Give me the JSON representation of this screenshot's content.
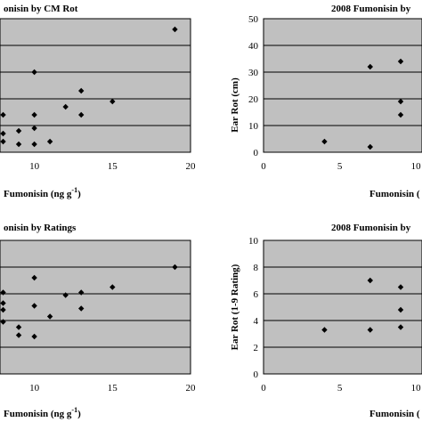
{
  "chart_data": [
    {
      "id": "tl",
      "type": "scatter",
      "title": "onisin by CM Rot",
      "xlabel": "Fumonisin (ng g",
      "xlabel_sup": "-1",
      "xlabel_tail": ")",
      "ylabel": "",
      "xlim": [
        7.8,
        20
      ],
      "ylim": [
        0,
        50
      ],
      "xticks": [
        "10",
        "15",
        "20"
      ],
      "yticks": [],
      "grid": true,
      "x": [
        8,
        8,
        8,
        9,
        9,
        10,
        10,
        10,
        10,
        11,
        12,
        13,
        13,
        15,
        19
      ],
      "y": [
        7,
        4,
        14,
        3,
        8,
        3,
        9,
        14,
        30,
        4,
        17,
        14,
        23,
        19,
        46
      ]
    },
    {
      "id": "tr",
      "type": "scatter",
      "title": "2008 Fumonisin by",
      "xlabel": "Fumonisin (",
      "ylabel": "Ear Rot (cm)",
      "xlim": [
        0,
        10.4
      ],
      "ylim": [
        0,
        50
      ],
      "xticks": [
        "0",
        "5",
        "10"
      ],
      "yticks": [
        "0",
        "10",
        "20",
        "30",
        "40",
        "50"
      ],
      "grid": true,
      "x": [
        4,
        7,
        7,
        9,
        9,
        9
      ],
      "y": [
        4,
        2,
        32,
        14,
        19,
        34
      ]
    },
    {
      "id": "bl",
      "type": "scatter",
      "title": "onisin by Ratings",
      "xlabel": "Fumonisin (ng g",
      "xlabel_sup": "-1",
      "xlabel_tail": ")",
      "ylabel": "",
      "xlim": [
        7.8,
        20
      ],
      "ylim": [
        0,
        10
      ],
      "xticks": [
        "10",
        "15",
        "20"
      ],
      "yticks": [],
      "grid": true,
      "x": [
        8,
        8,
        8,
        8,
        9,
        9,
        10,
        10,
        10,
        11,
        12,
        13,
        13,
        15,
        19
      ],
      "y": [
        6.1,
        4.8,
        3.9,
        5.3,
        3.5,
        2.9,
        2.8,
        5.1,
        7.2,
        4.3,
        5.9,
        4.9,
        6.1,
        6.5,
        8.0
      ]
    },
    {
      "id": "br",
      "type": "scatter",
      "title": "2008 Fumonisin by",
      "xlabel": "Fumonisin (",
      "ylabel": "Ear Rot (1-9 Rating)",
      "xlim": [
        0,
        10.4
      ],
      "ylim": [
        0,
        10
      ],
      "xticks": [
        "0",
        "5",
        "10"
      ],
      "yticks": [
        "0",
        "2",
        "4",
        "6",
        "8",
        "10"
      ],
      "grid": true,
      "x": [
        4,
        7,
        7,
        9,
        9,
        9
      ],
      "y": [
        3.3,
        3.3,
        7.0,
        3.5,
        4.8,
        6.5
      ]
    }
  ]
}
